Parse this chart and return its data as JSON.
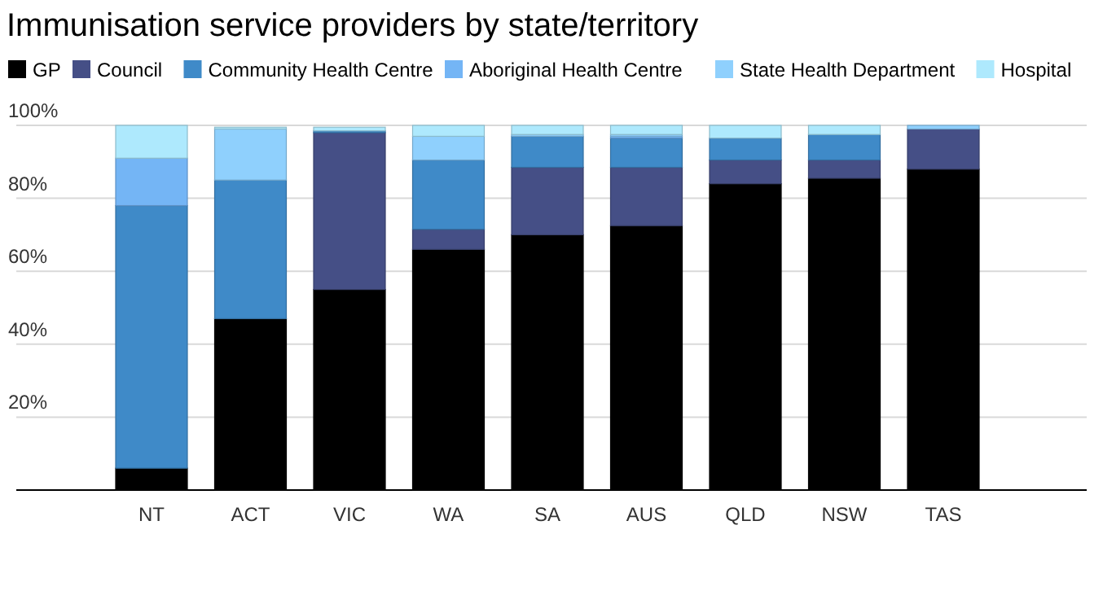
{
  "chart_data": {
    "type": "bar",
    "title": "Immunisation service providers by state/territory",
    "categories": [
      "NT",
      "ACT",
      "VIC",
      "WA",
      "SA",
      "AUS",
      "QLD",
      "NSW",
      "TAS"
    ],
    "stacked": true,
    "series": [
      {
        "name": "GP",
        "color": "#000000",
        "values": [
          6,
          47,
          55,
          66,
          70,
          72.5,
          84,
          85.5,
          88
        ]
      },
      {
        "name": "Council",
        "color": "#454f86",
        "values": [
          0,
          0,
          43,
          5.5,
          18.5,
          16,
          6.5,
          5,
          11
        ]
      },
      {
        "name": "Community Health Centre",
        "color": "#3f8ac8",
        "values": [
          72,
          38,
          0.5,
          19,
          8.5,
          8,
          6,
          7,
          0
        ]
      },
      {
        "name": "Aboriginal Health Centre",
        "color": "#74b5f5",
        "values": [
          13,
          0,
          0,
          0,
          0,
          0.5,
          0,
          0,
          0
        ]
      },
      {
        "name": "State Health Department",
        "color": "#8fd0fd",
        "values": [
          0,
          14,
          0,
          6.5,
          0.5,
          0.5,
          0,
          0,
          1
        ]
      },
      {
        "name": "Hospital",
        "color": "#aee9fd",
        "values": [
          9,
          0.5,
          1,
          3,
          2.5,
          2.5,
          3.5,
          2.5,
          0
        ]
      }
    ],
    "ylim": [
      0,
      100
    ],
    "yticks": [
      {
        "value": 0,
        "label": null
      },
      {
        "value": 20,
        "label": "20%"
      },
      {
        "value": 40,
        "label": "40%"
      },
      {
        "value": 60,
        "label": "60%"
      },
      {
        "value": 80,
        "label": "80%"
      },
      {
        "value": 100,
        "label": "100%"
      }
    ],
    "grid": "y",
    "legend": "top left"
  }
}
